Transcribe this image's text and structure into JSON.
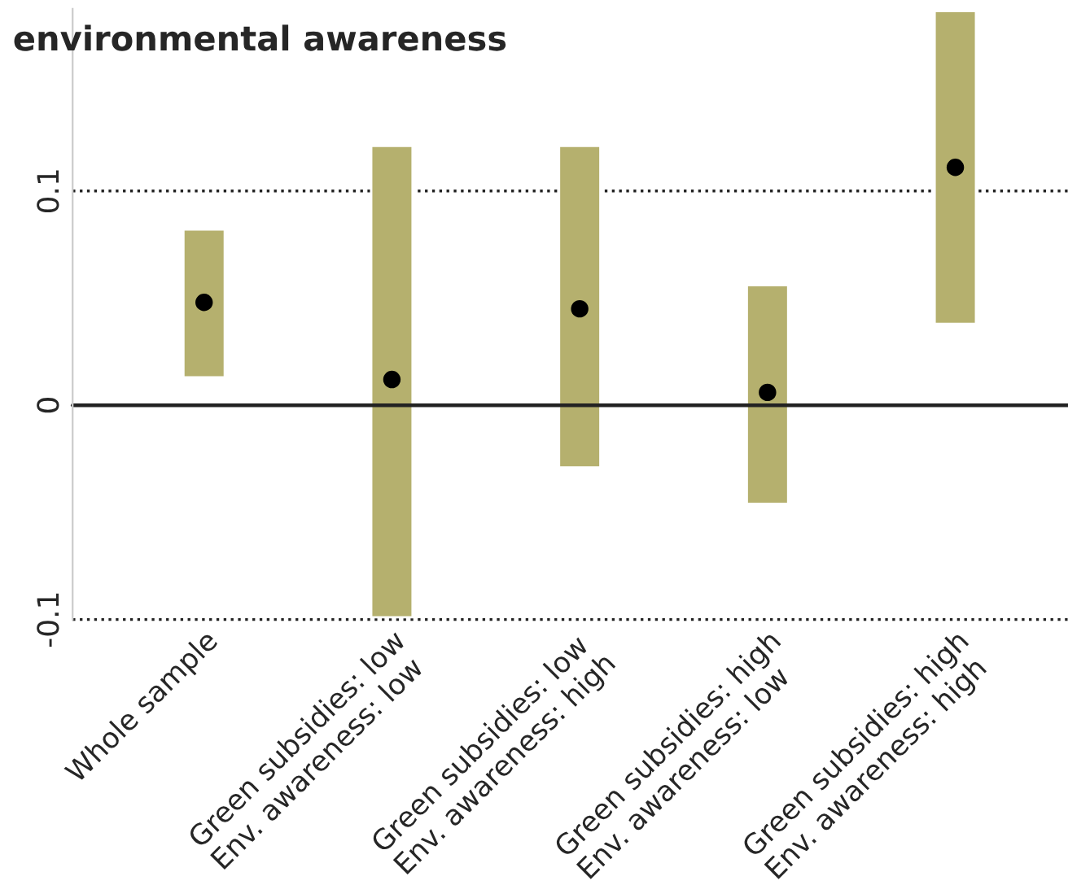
{
  "chart_data": {
    "type": "bar",
    "title": "environmental awareness",
    "categories": [
      "Whole sample",
      "Green subsidies: low\nEnv. awareness: low",
      "Green subsidies: low\nEnv. awareness: high",
      "Green subsidies: high\nEnv. awareness: low",
      "Green subsidies: high\nEnv. awareness: high"
    ],
    "series": [
      {
        "color": "#b5b06e",
        "base": [
          0.013,
          -0.099,
          -0.029,
          -0.046,
          0.038
        ],
        "values": [
          0.069,
          0.22,
          0.15,
          0.102,
          0.146
        ]
      },
      {
        "type": "scatter",
        "color": "#000000",
        "x": [
          "Whole sample",
          "Green subsidies: low\nEnv. awareness: low",
          "Green subsidies: low\nEnv. awareness: high",
          "Green subsidies: high\nEnv. awareness: low",
          "Green subsidies: high\nEnv. awareness: high"
        ],
        "values": [
          0.048,
          0.012,
          0.045,
          0.006,
          0.111
        ]
      }
    ],
    "ylim": [
      -0.1,
      0.185
    ],
    "yticks": [
      -0.1,
      0,
      0.1
    ],
    "marker": "circle",
    "ref_lines": [
      {
        "axis": "y",
        "value": 0,
        "color": "#222222",
        "line_style": "solid"
      },
      {
        "axis": "y",
        "value": 0.1,
        "color": "#222222",
        "line_style": "dotted"
      },
      {
        "axis": "y",
        "value": -0.1,
        "color": "#222222",
        "line_style": "dotted"
      }
    ]
  }
}
